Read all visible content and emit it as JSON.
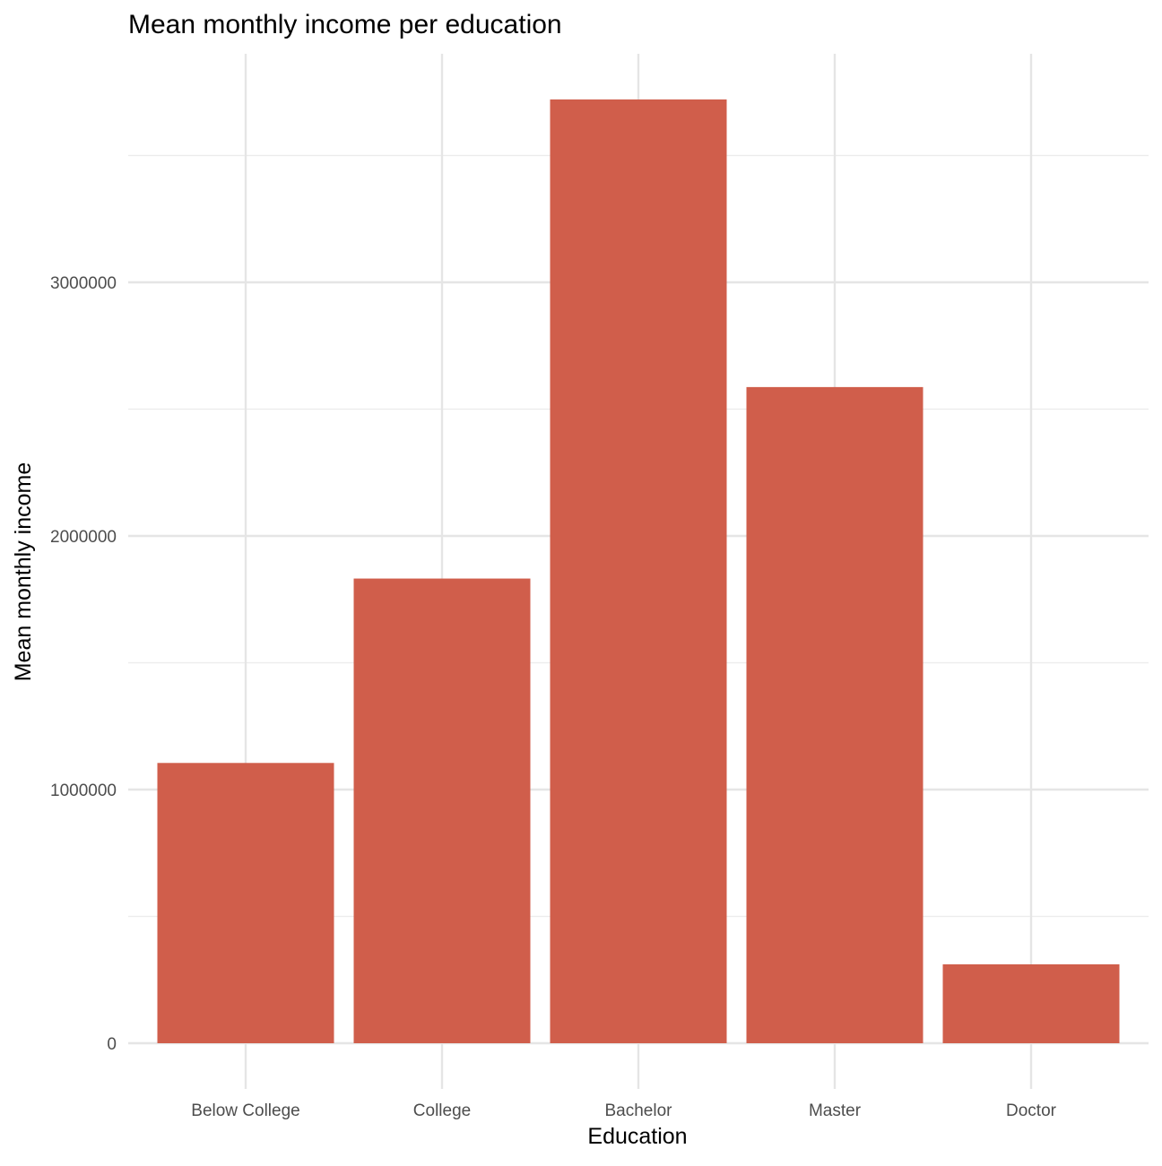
{
  "chart_data": {
    "type": "bar",
    "title": "Mean monthly income per education",
    "xlabel": "Education",
    "ylabel": "Mean monthly income",
    "categories": [
      "Below College",
      "College",
      "Bachelor",
      "Master",
      "Doctor"
    ],
    "values": [
      1105000,
      1832000,
      3721000,
      2587000,
      311000
    ],
    "ylim": [
      -180000,
      3900000
    ],
    "yticks": [
      0,
      1000000,
      2000000,
      3000000
    ],
    "ytick_labels": [
      "0",
      "1000000",
      "2000000",
      "3000000"
    ],
    "yminor": [
      500000,
      1500000,
      2500000,
      3500000
    ],
    "bar_color": "#d05e4b",
    "grid": true,
    "legend": "none"
  }
}
